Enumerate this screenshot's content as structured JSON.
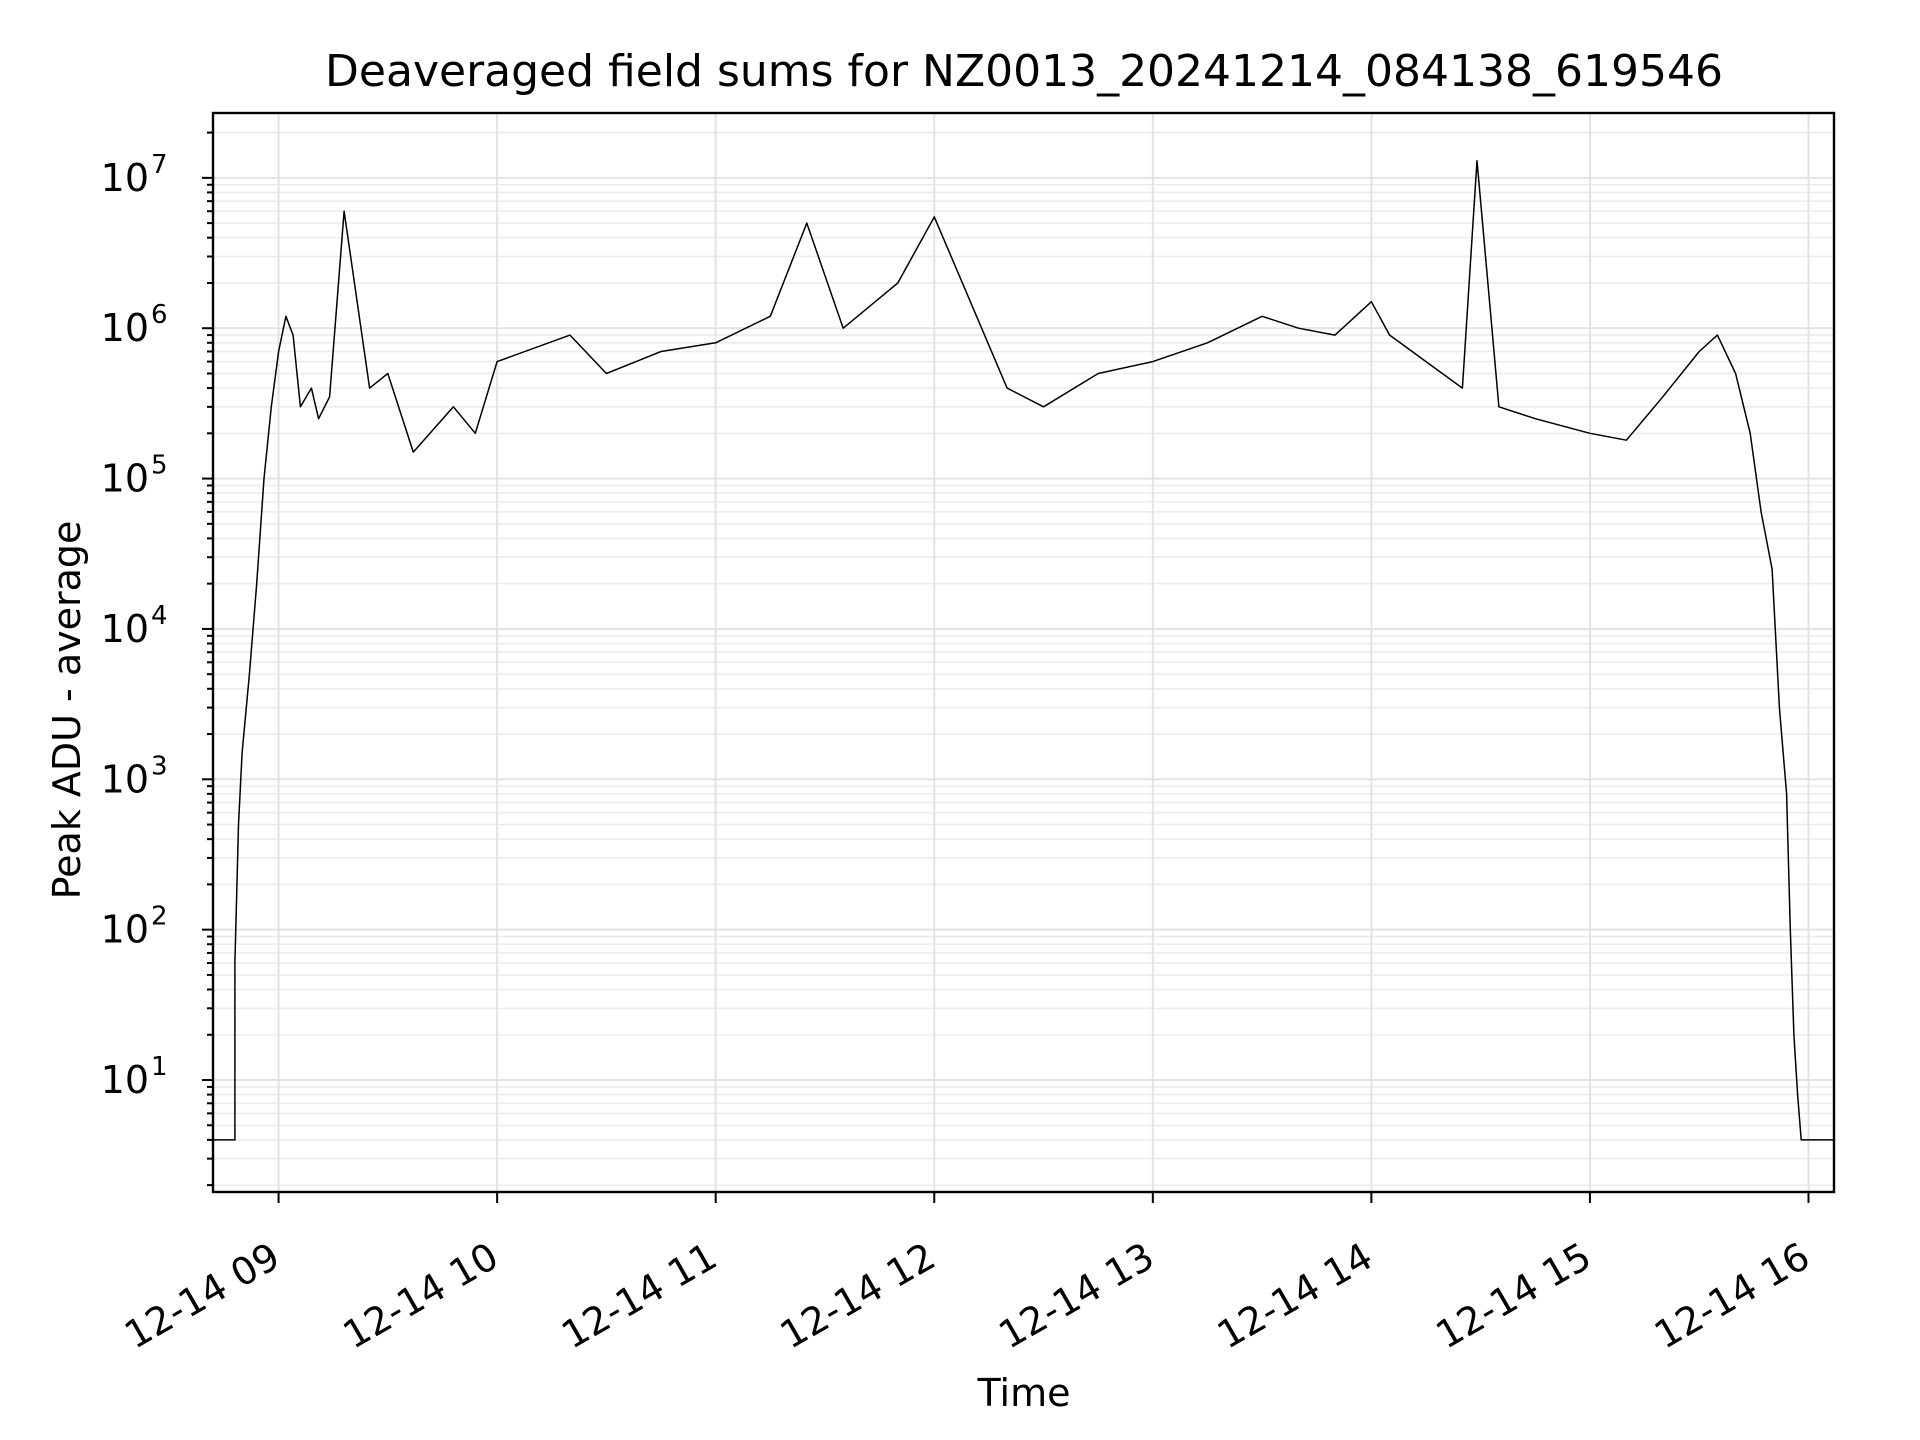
{
  "chart_data": {
    "type": "line",
    "title": "Deaveraged field sums for NZ0013_20241214_084138_619546",
    "xlabel": "Time",
    "ylabel": "Peak ADU - average",
    "yscale": "log",
    "grid": true,
    "grid_minor": true,
    "xlim": [
      "2024-12-14 08:42",
      "2024-12-14 16:07"
    ],
    "ylim": [
      1.8,
      27000000
    ],
    "x_tick_labels": [
      "12-14 09",
      "12-14 10",
      "12-14 11",
      "12-14 12",
      "12-14 13",
      "12-14 14",
      "12-14 15",
      "12-14 16"
    ],
    "x_tick_values": [
      "2024-12-14 09:00",
      "2024-12-14 10:00",
      "2024-12-14 11:00",
      "2024-12-14 12:00",
      "2024-12-14 13:00",
      "2024-12-14 14:00",
      "2024-12-14 15:00",
      "2024-12-14 16:00"
    ],
    "y_tick_values": [
      10,
      100,
      1000,
      10000,
      100000,
      1000000,
      10000000
    ],
    "y_tick_labels": [
      {
        "base": "10",
        "exp": "1"
      },
      {
        "base": "10",
        "exp": "2"
      },
      {
        "base": "10",
        "exp": "3"
      },
      {
        "base": "10",
        "exp": "4"
      },
      {
        "base": "10",
        "exp": "5"
      },
      {
        "base": "10",
        "exp": "6"
      },
      {
        "base": "10",
        "exp": "7"
      }
    ],
    "series": [
      {
        "color": "#000000",
        "x": [
          "2024-12-14 08:42",
          "2024-12-14 08:48",
          "2024-12-14 08:48",
          "2024-12-14 08:49",
          "2024-12-14 08:50",
          "2024-12-14 08:52",
          "2024-12-14 08:54",
          "2024-12-14 08:56",
          "2024-12-14 08:58",
          "2024-12-14 09:00",
          "2024-12-14 09:02",
          "2024-12-14 09:04",
          "2024-12-14 09:06",
          "2024-12-14 09:09",
          "2024-12-14 09:11",
          "2024-12-14 09:14",
          "2024-12-14 09:18",
          "2024-12-14 09:25",
          "2024-12-14 09:30",
          "2024-12-14 09:37",
          "2024-12-14 09:48",
          "2024-12-14 09:54",
          "2024-12-14 10:00",
          "2024-12-14 10:20",
          "2024-12-14 10:30",
          "2024-12-14 10:45",
          "2024-12-14 11:00",
          "2024-12-14 11:15",
          "2024-12-14 11:25",
          "2024-12-14 11:35",
          "2024-12-14 11:50",
          "2024-12-14 12:00",
          "2024-12-14 12:20",
          "2024-12-14 12:30",
          "2024-12-14 12:45",
          "2024-12-14 13:00",
          "2024-12-14 13:15",
          "2024-12-14 13:30",
          "2024-12-14 13:40",
          "2024-12-14 13:50",
          "2024-12-14 14:00",
          "2024-12-14 14:05",
          "2024-12-14 14:15",
          "2024-12-14 14:25",
          "2024-12-14 14:29",
          "2024-12-14 14:35",
          "2024-12-14 14:45",
          "2024-12-14 15:00",
          "2024-12-14 15:10",
          "2024-12-14 15:20",
          "2024-12-14 15:30",
          "2024-12-14 15:35",
          "2024-12-14 15:40",
          "2024-12-14 15:44",
          "2024-12-14 15:47",
          "2024-12-14 15:50",
          "2024-12-14 15:52",
          "2024-12-14 15:54",
          "2024-12-14 15:55",
          "2024-12-14 15:56",
          "2024-12-14 15:57",
          "2024-12-14 15:58",
          "2024-12-14 15:59",
          "2024-12-14 16:07"
        ],
        "y": [
          4,
          4,
          60,
          500,
          1500,
          5000,
          20000,
          100000,
          300000,
          700000,
          1200000,
          900000,
          300000,
          400000,
          250000,
          350000,
          6000000,
          400000,
          500000,
          150000,
          300000,
          200000,
          600000,
          900000,
          500000,
          700000,
          800000,
          1200000,
          5000000,
          1000000,
          2000000,
          5500000,
          400000,
          300000,
          500000,
          600000,
          800000,
          1200000,
          1000000,
          900000,
          1500000,
          900000,
          600000,
          400000,
          13000000,
          300000,
          250000,
          200000,
          180000,
          350000,
          700000,
          900000,
          500000,
          200000,
          60000,
          25000,
          3000,
          800,
          100,
          20,
          8,
          4,
          4,
          4
        ]
      }
    ]
  }
}
